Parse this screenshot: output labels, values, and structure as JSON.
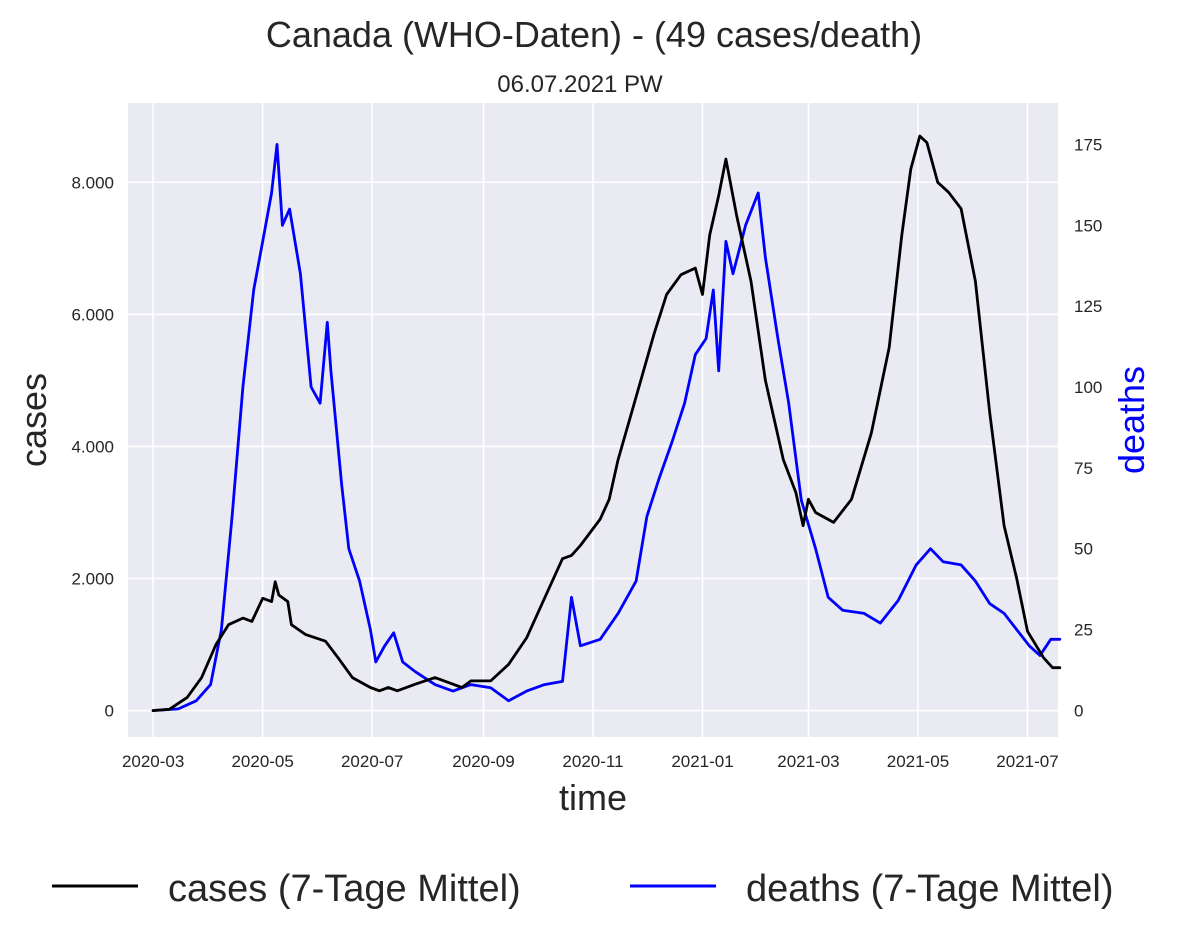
{
  "chart_data": {
    "type": "line",
    "title": "Canada (WHO-Daten) - (49 cases/death)",
    "subtitle": "06.07.2021 PW",
    "xlabel": "time",
    "ylabel": "cases",
    "y2label": "deaths",
    "x_ticks": [
      "2020-03",
      "2020-05",
      "2020-07",
      "2020-09",
      "2020-11",
      "2021-01",
      "2021-03",
      "2021-05",
      "2021-07"
    ],
    "y_ticks": [
      "0",
      "2.000",
      "4.000",
      "6.000",
      "8.000"
    ],
    "y2_ticks": [
      "0",
      "25",
      "50",
      "75",
      "100",
      "125",
      "150",
      "175"
    ],
    "xlim": [
      "2020-02-16",
      "2021-07-18"
    ],
    "ylim": [
      -400,
      9200
    ],
    "y2lim": [
      -8.2,
      187.8
    ],
    "grid": true,
    "legend_position": "bottom",
    "colors": {
      "cases": "#000000",
      "deaths": "#0000ff",
      "background": "#eaeaf2",
      "grid": "#ffffff"
    },
    "series": [
      {
        "name": "cases (7-Tage Mittel)",
        "axis": "left",
        "points": [
          [
            "2020-03-01",
            0
          ],
          [
            "2020-03-10",
            20
          ],
          [
            "2020-03-20",
            200
          ],
          [
            "2020-03-28",
            500
          ],
          [
            "2020-04-05",
            1000
          ],
          [
            "2020-04-12",
            1300
          ],
          [
            "2020-04-20",
            1400
          ],
          [
            "2020-04-25",
            1350
          ],
          [
            "2020-05-01",
            1700
          ],
          [
            "2020-05-06",
            1650
          ],
          [
            "2020-05-08",
            1950
          ],
          [
            "2020-05-10",
            1750
          ],
          [
            "2020-05-15",
            1650
          ],
          [
            "2020-05-17",
            1300
          ],
          [
            "2020-05-25",
            1150
          ],
          [
            "2020-06-05",
            1050
          ],
          [
            "2020-06-12",
            800
          ],
          [
            "2020-06-20",
            500
          ],
          [
            "2020-06-30",
            350
          ],
          [
            "2020-07-05",
            300
          ],
          [
            "2020-07-10",
            350
          ],
          [
            "2020-07-15",
            300
          ],
          [
            "2020-07-25",
            400
          ],
          [
            "2020-08-05",
            500
          ],
          [
            "2020-08-15",
            400
          ],
          [
            "2020-08-20",
            350
          ],
          [
            "2020-08-25",
            450
          ],
          [
            "2020-09-05",
            450
          ],
          [
            "2020-09-15",
            700
          ],
          [
            "2020-09-25",
            1100
          ],
          [
            "2020-10-05",
            1700
          ],
          [
            "2020-10-15",
            2300
          ],
          [
            "2020-10-20",
            2350
          ],
          [
            "2020-10-25",
            2500
          ],
          [
            "2020-11-05",
            2900
          ],
          [
            "2020-11-10",
            3200
          ],
          [
            "2020-11-15",
            3800
          ],
          [
            "2020-11-25",
            4750
          ],
          [
            "2020-12-05",
            5700
          ],
          [
            "2020-12-12",
            6300
          ],
          [
            "2020-12-20",
            6600
          ],
          [
            "2020-12-28",
            6700
          ],
          [
            "2021-01-01",
            6300
          ],
          [
            "2021-01-05",
            7200
          ],
          [
            "2021-01-10",
            7800
          ],
          [
            "2021-01-14",
            8350
          ],
          [
            "2021-01-20",
            7500
          ],
          [
            "2021-01-28",
            6500
          ],
          [
            "2021-02-05",
            5000
          ],
          [
            "2021-02-15",
            3800
          ],
          [
            "2021-02-22",
            3300
          ],
          [
            "2021-02-26",
            2800
          ],
          [
            "2021-03-01",
            3200
          ],
          [
            "2021-03-05",
            3000
          ],
          [
            "2021-03-15",
            2850
          ],
          [
            "2021-03-25",
            3200
          ],
          [
            "2021-04-05",
            4200
          ],
          [
            "2021-04-15",
            5500
          ],
          [
            "2021-04-22",
            7200
          ],
          [
            "2021-04-27",
            8200
          ],
          [
            "2021-05-02",
            8700
          ],
          [
            "2021-05-06",
            8600
          ],
          [
            "2021-05-12",
            8000
          ],
          [
            "2021-05-18",
            7850
          ],
          [
            "2021-05-25",
            7600
          ],
          [
            "2021-06-02",
            6500
          ],
          [
            "2021-06-10",
            4500
          ],
          [
            "2021-06-18",
            2800
          ],
          [
            "2021-06-25",
            2000
          ],
          [
            "2021-07-01",
            1200
          ],
          [
            "2021-07-10",
            800
          ],
          [
            "2021-07-15",
            650
          ],
          [
            "2021-07-19",
            650
          ]
        ]
      },
      {
        "name": "deaths (7-Tage Mittel)",
        "axis": "right",
        "points": [
          [
            "2020-03-01",
            0
          ],
          [
            "2020-03-15",
            0.5
          ],
          [
            "2020-03-25",
            3
          ],
          [
            "2020-04-02",
            8
          ],
          [
            "2020-04-08",
            25
          ],
          [
            "2020-04-14",
            60
          ],
          [
            "2020-04-20",
            100
          ],
          [
            "2020-04-26",
            130
          ],
          [
            "2020-05-01",
            145
          ],
          [
            "2020-05-06",
            160
          ],
          [
            "2020-05-09",
            175
          ],
          [
            "2020-05-12",
            150
          ],
          [
            "2020-05-16",
            155
          ],
          [
            "2020-05-22",
            135
          ],
          [
            "2020-05-28",
            100
          ],
          [
            "2020-06-02",
            95
          ],
          [
            "2020-06-06",
            120
          ],
          [
            "2020-06-08",
            105
          ],
          [
            "2020-06-14",
            70
          ],
          [
            "2020-06-18",
            50
          ],
          [
            "2020-06-24",
            40
          ],
          [
            "2020-06-30",
            25
          ],
          [
            "2020-07-03",
            15
          ],
          [
            "2020-07-08",
            20
          ],
          [
            "2020-07-13",
            24
          ],
          [
            "2020-07-18",
            15
          ],
          [
            "2020-07-25",
            12
          ],
          [
            "2020-08-05",
            8
          ],
          [
            "2020-08-15",
            6
          ],
          [
            "2020-08-25",
            8
          ],
          [
            "2020-09-05",
            7
          ],
          [
            "2020-09-15",
            3
          ],
          [
            "2020-09-25",
            6
          ],
          [
            "2020-10-05",
            8
          ],
          [
            "2020-10-15",
            9
          ],
          [
            "2020-10-20",
            35
          ],
          [
            "2020-10-25",
            20
          ],
          [
            "2020-11-05",
            22
          ],
          [
            "2020-11-15",
            30
          ],
          [
            "2020-11-25",
            40
          ],
          [
            "2020-12-01",
            60
          ],
          [
            "2020-12-08",
            72
          ],
          [
            "2020-12-15",
            83
          ],
          [
            "2020-12-22",
            95
          ],
          [
            "2020-12-28",
            110
          ],
          [
            "2021-01-03",
            115
          ],
          [
            "2021-01-07",
            130
          ],
          [
            "2021-01-10",
            105
          ],
          [
            "2021-01-14",
            145
          ],
          [
            "2021-01-18",
            135
          ],
          [
            "2021-01-25",
            150
          ],
          [
            "2021-02-01",
            160
          ],
          [
            "2021-02-05",
            140
          ],
          [
            "2021-02-12",
            115
          ],
          [
            "2021-02-18",
            95
          ],
          [
            "2021-02-25",
            65
          ],
          [
            "2021-03-05",
            50
          ],
          [
            "2021-03-12",
            35
          ],
          [
            "2021-03-20",
            31
          ],
          [
            "2021-04-01",
            30
          ],
          [
            "2021-04-10",
            27
          ],
          [
            "2021-04-20",
            34
          ],
          [
            "2021-04-30",
            45
          ],
          [
            "2021-05-08",
            50
          ],
          [
            "2021-05-15",
            46
          ],
          [
            "2021-05-25",
            45
          ],
          [
            "2021-06-02",
            40
          ],
          [
            "2021-06-10",
            33
          ],
          [
            "2021-06-18",
            30
          ],
          [
            "2021-06-25",
            25
          ],
          [
            "2021-07-02",
            20
          ],
          [
            "2021-07-08",
            17
          ],
          [
            "2021-07-14",
            22
          ],
          [
            "2021-07-19",
            22
          ]
        ]
      }
    ]
  }
}
